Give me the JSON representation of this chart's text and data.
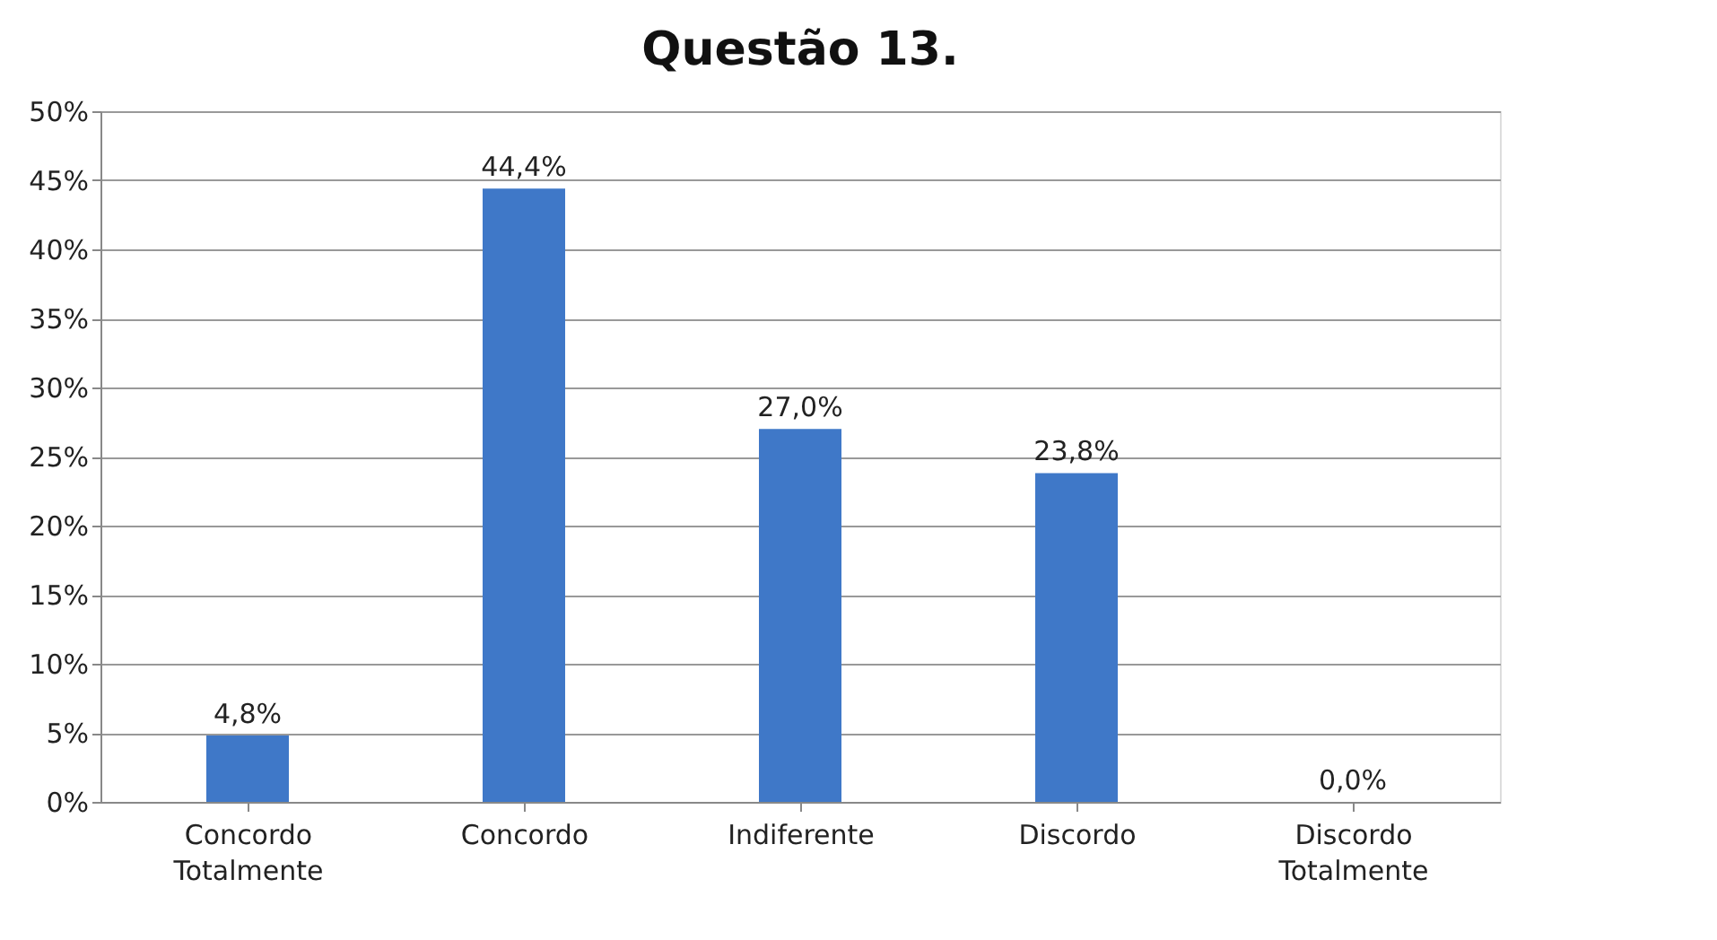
{
  "chart_data": {
    "type": "bar",
    "title": "Questão 13.",
    "categories": [
      "Concordo Totalmente",
      "Concordo",
      "Indiferente",
      "Discordo",
      "Discordo Totalmente"
    ],
    "values": [
      4.8,
      44.4,
      27.0,
      23.8,
      0.0
    ],
    "value_labels": [
      "4,8%",
      "44,4%",
      "27,0%",
      "23,8%",
      "0,0%"
    ],
    "color": "#3f78c8",
    "ylim": [
      0,
      50
    ],
    "yticks": [
      {
        "value": 0,
        "label": "0%"
      },
      {
        "value": 5,
        "label": "5%"
      },
      {
        "value": 10,
        "label": "10%"
      },
      {
        "value": 15,
        "label": "15%"
      },
      {
        "value": 20,
        "label": "20%"
      },
      {
        "value": 25,
        "label": "25%"
      },
      {
        "value": 30,
        "label": "30%"
      },
      {
        "value": 35,
        "label": "35%"
      },
      {
        "value": 40,
        "label": "40%"
      },
      {
        "value": 45,
        "label": "45%"
      },
      {
        "value": 50,
        "label": "50%"
      }
    ],
    "grid": "y"
  }
}
